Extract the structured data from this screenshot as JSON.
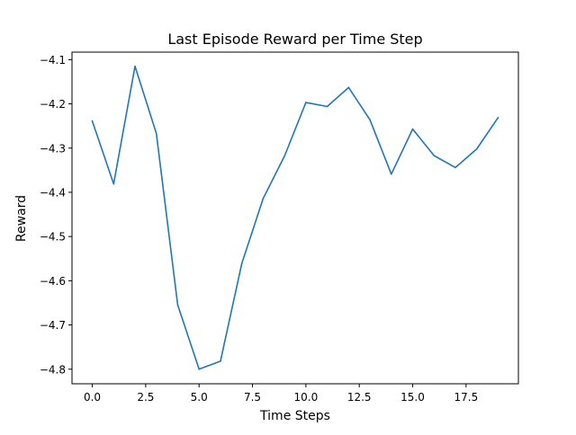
{
  "chart_data": {
    "type": "line",
    "title": "Last Episode Reward per Time Step",
    "xlabel": "Time Steps",
    "ylabel": "Reward",
    "xlim": [
      -0.95,
      19.95
    ],
    "ylim": [
      -4.833,
      -4.083
    ],
    "x_ticks": [
      0.0,
      2.5,
      5.0,
      7.5,
      10.0,
      12.5,
      15.0,
      17.5
    ],
    "x_tick_labels": [
      "0.0",
      "2.5",
      "5.0",
      "7.5",
      "10.0",
      "12.5",
      "15.0",
      "17.5"
    ],
    "y_ticks": [
      -4.1,
      -4.2,
      -4.3,
      -4.4,
      -4.5,
      -4.6,
      -4.7,
      -4.8
    ],
    "y_tick_labels": [
      "−4.1",
      "−4.2",
      "−4.3",
      "−4.4",
      "−4.5",
      "−4.6",
      "−4.7",
      "−4.8"
    ],
    "grid": false,
    "series": [
      {
        "color": "#1f77b4",
        "x": [
          0,
          1,
          2,
          3,
          4,
          5,
          6,
          7,
          8,
          9,
          10,
          11,
          12,
          13,
          14,
          15,
          16,
          17,
          18,
          19
        ],
        "y": [
          -4.239,
          -4.381,
          -4.115,
          -4.267,
          -4.655,
          -4.8,
          -4.782,
          -4.561,
          -4.414,
          -4.318,
          -4.197,
          -4.206,
          -4.163,
          -4.236,
          -4.359,
          -4.257,
          -4.317,
          -4.344,
          -4.302,
          -4.231
        ]
      }
    ]
  }
}
